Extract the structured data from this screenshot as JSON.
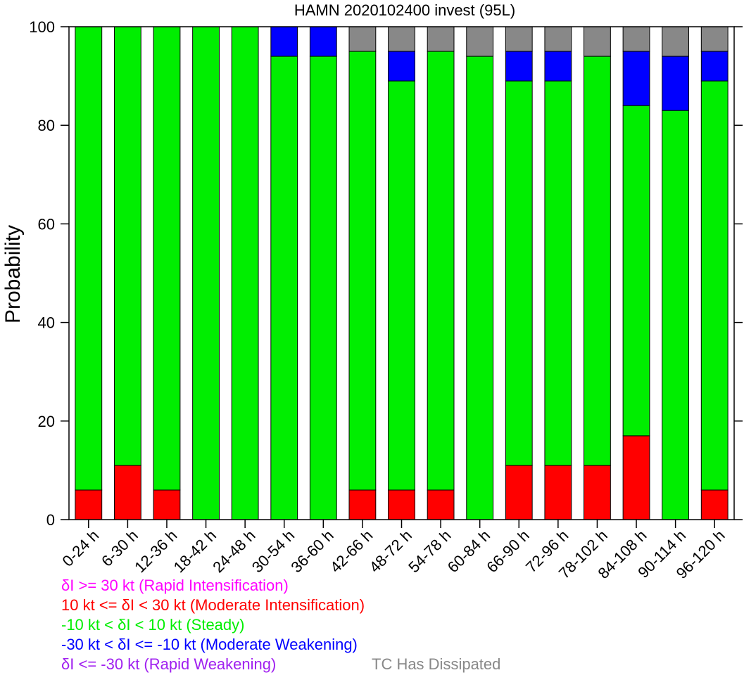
{
  "chart_data": {
    "type": "bar",
    "stacked": true,
    "title": "HAMN 2020102400 invest (95L)",
    "xlabel": "",
    "ylabel": "Probability",
    "ylim": [
      0,
      100
    ],
    "yticks": [
      "0",
      "20",
      "40",
      "60",
      "80",
      "100"
    ],
    "grid": false,
    "categories": [
      "0-24 h",
      "6-30 h",
      "12-36 h",
      "18-42 h",
      "24-48 h",
      "30-54 h",
      "36-60 h",
      "42-66 h",
      "48-72 h",
      "54-78 h",
      "60-84 h",
      "66-90 h",
      "72-96 h",
      "78-102 h",
      "84-108 h",
      "90-114 h",
      "96-120 h"
    ],
    "series": [
      {
        "name": "δI >= 30 kt (Rapid Intensification)",
        "color": "#ff00ff",
        "values": [
          0,
          0,
          0,
          0,
          0,
          0,
          0,
          0,
          0,
          0,
          0,
          0,
          0,
          0,
          0,
          0,
          0
        ]
      },
      {
        "name": "10 kt <= δI < 30 kt (Moderate Intensification)",
        "color": "#ff0000",
        "values": [
          6,
          11,
          6,
          0,
          0,
          0,
          0,
          6,
          6,
          6,
          0,
          11,
          11,
          11,
          17,
          0,
          6
        ]
      },
      {
        "name": "-10 kt < δI < 10 kt (Steady)",
        "color": "#00ee00",
        "values": [
          94,
          89,
          94,
          100,
          100,
          94,
          94,
          89,
          83,
          89,
          94,
          78,
          78,
          83,
          67,
          83,
          83
        ]
      },
      {
        "name": "-30 kt < δI <= -10 kt (Moderate Weakening)",
        "color": "#0000ff",
        "values": [
          0,
          0,
          0,
          0,
          0,
          6,
          6,
          0,
          6,
          0,
          0,
          6,
          6,
          0,
          11,
          11,
          6
        ]
      },
      {
        "name": "δI <= -30 kt (Rapid Weakening)",
        "color": "#a020f0",
        "values": [
          0,
          0,
          0,
          0,
          0,
          0,
          0,
          0,
          0,
          0,
          0,
          0,
          0,
          0,
          0,
          0,
          0
        ]
      },
      {
        "name": "TC Has Dissipated",
        "color": "#888888",
        "values": [
          0,
          0,
          0,
          0,
          0,
          0,
          0,
          5,
          5,
          5,
          6,
          5,
          5,
          6,
          5,
          6,
          5
        ]
      }
    ],
    "legend_position": "bottom-left"
  }
}
